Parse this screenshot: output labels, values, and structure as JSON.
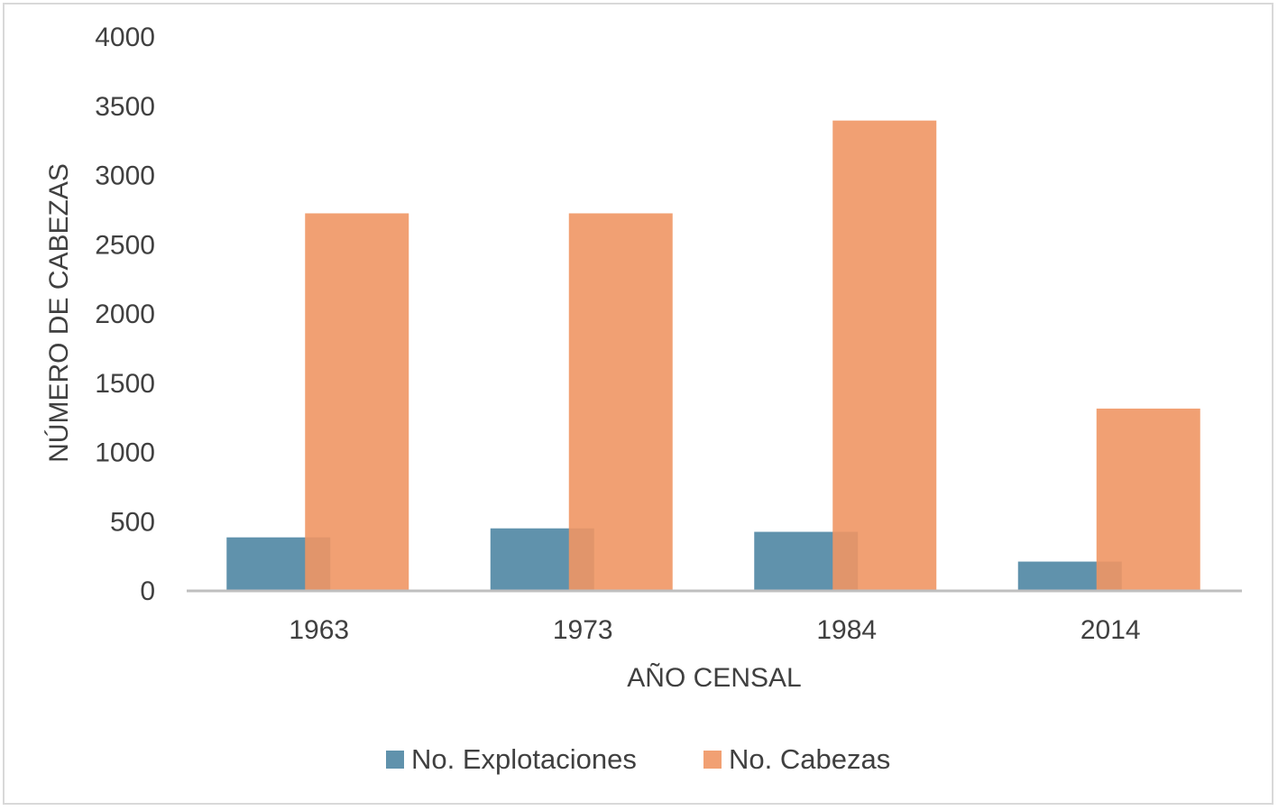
{
  "chart_data": {
    "type": "bar",
    "categories": [
      "1963",
      "1973",
      "1984",
      "2014"
    ],
    "series": [
      {
        "name": "No. Explotaciones",
        "values": [
          380,
          445,
          420,
          205
        ],
        "color": "#4f86a3"
      },
      {
        "name": "No. Cabezas",
        "values": [
          2720,
          2720,
          3390,
          1310
        ],
        "color": "#f09664"
      }
    ],
    "title": "",
    "xlabel": "AÑO CENSAL",
    "ylabel": "NÚMERO DE CABEZAS",
    "ylim": [
      0,
      4000
    ],
    "yticks": [
      "0",
      "500",
      "1000",
      "1500",
      "2000",
      "2500",
      "3000",
      "3500",
      "4000"
    ],
    "grid": false,
    "legend_position": "bottom",
    "bar_opacity": 0.9,
    "axis_color": "#bfbfbf"
  }
}
